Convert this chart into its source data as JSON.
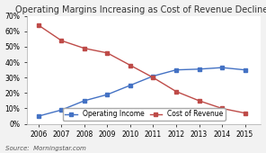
{
  "title": "Operating Margins Increasing as Cost of Revenue Declines",
  "years": [
    2006,
    2007,
    2008,
    2009,
    2010,
    2011,
    2012,
    2013,
    2014,
    2015
  ],
  "operating_income": [
    0.05,
    0.09,
    0.15,
    0.19,
    0.25,
    0.31,
    0.35,
    0.355,
    0.365,
    0.35
  ],
  "cost_of_revenue": [
    0.64,
    0.54,
    0.49,
    0.46,
    0.38,
    0.3,
    0.21,
    0.15,
    0.1,
    0.07
  ],
  "operating_color": "#4472C4",
  "cost_color": "#BE4B48",
  "background_color": "#F2F2F2",
  "plot_bg_color": "#FFFFFF",
  "grid_color": "#FFFFFF",
  "ylim": [
    0,
    0.7
  ],
  "yticks": [
    0.0,
    0.1,
    0.2,
    0.3,
    0.4,
    0.5,
    0.6,
    0.7
  ],
  "source_text": "Source:  Morningstar.com",
  "legend_operating": "Operating Income",
  "legend_cost": "Cost of Revenue",
  "title_fontsize": 7.0,
  "axis_fontsize": 5.5,
  "legend_fontsize": 5.5,
  "source_fontsize": 5.0
}
